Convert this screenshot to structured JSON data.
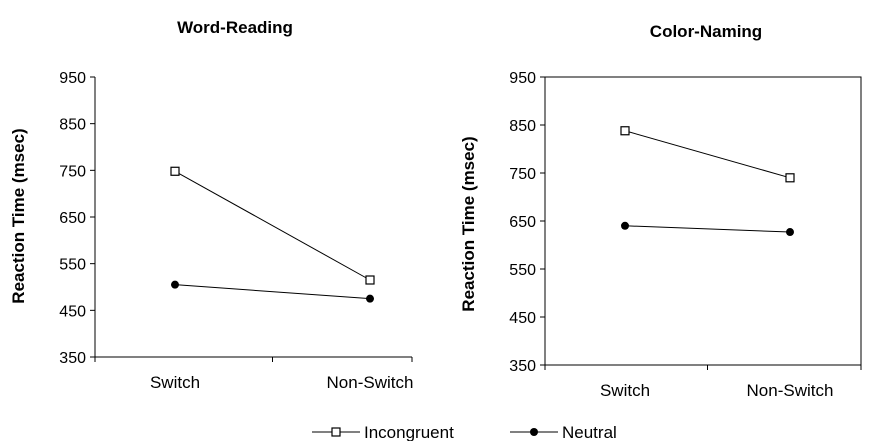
{
  "chart_data": [
    {
      "type": "line",
      "title": "Word-Reading",
      "xlabel": "",
      "ylabel": "Reaction Time (msec)",
      "categories": [
        "Switch",
        "Non-Switch"
      ],
      "ylim": [
        350,
        950
      ],
      "yticks": [
        350,
        450,
        550,
        650,
        750,
        850,
        950
      ],
      "grid": false,
      "series": [
        {
          "name": "Incongruent",
          "values": [
            748,
            515
          ],
          "marker": "open-square"
        },
        {
          "name": "Neutral",
          "values": [
            505,
            475
          ],
          "marker": "filled-circle"
        }
      ]
    },
    {
      "type": "line",
      "title": "Color-Naming",
      "xlabel": "",
      "ylabel": "Reaction Time (msec)",
      "categories": [
        "Switch",
        "Non-Switch"
      ],
      "ylim": [
        350,
        950
      ],
      "yticks": [
        350,
        450,
        550,
        650,
        750,
        850,
        950
      ],
      "grid": false,
      "series": [
        {
          "name": "Incongruent",
          "values": [
            838,
            740
          ],
          "marker": "open-square"
        },
        {
          "name": "Neutral",
          "values": [
            640,
            627
          ],
          "marker": "filled-circle"
        }
      ]
    }
  ],
  "legend": {
    "placement": "bottom",
    "items": [
      {
        "label": "Incongruent",
        "marker": "open-square"
      },
      {
        "label": "Neutral",
        "marker": "filled-circle"
      }
    ]
  }
}
